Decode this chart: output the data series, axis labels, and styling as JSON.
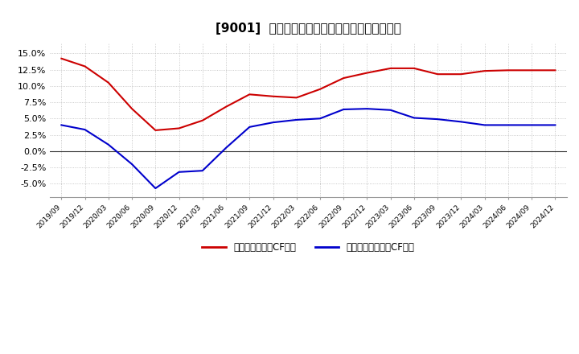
{
  "title": "[9001]  有利子負債キャッシュフロー比率の推移",
  "x_labels": [
    "2019/09",
    "2019/12",
    "2020/03",
    "2020/06",
    "2020/09",
    "2020/12",
    "2021/03",
    "2021/06",
    "2021/09",
    "2021/12",
    "2022/03",
    "2022/06",
    "2022/09",
    "2022/12",
    "2023/03",
    "2023/06",
    "2023/09",
    "2023/12",
    "2024/03",
    "2024/06",
    "2024/09",
    "2024/12"
  ],
  "red_values": [
    14.2,
    13.0,
    10.5,
    6.5,
    3.2,
    3.5,
    4.7,
    6.8,
    8.7,
    8.4,
    8.2,
    9.5,
    11.2,
    12.0,
    12.7,
    12.7,
    11.8,
    11.8,
    12.3,
    12.4,
    12.4,
    12.4
  ],
  "blue_values": [
    4.0,
    3.3,
    1.0,
    -2.0,
    -5.7,
    -3.2,
    -3.0,
    0.5,
    3.7,
    4.4,
    4.8,
    5.0,
    6.4,
    6.5,
    6.3,
    5.1,
    4.9,
    4.5,
    4.0,
    4.0,
    4.0,
    4.0
  ],
  "red_color": "#cc0000",
  "blue_color": "#0000cc",
  "background_color": "#ffffff",
  "grid_color": "#aaaaaa",
  "ylim": [
    -7.0,
    16.5
  ],
  "yticks": [
    -5.0,
    -2.5,
    0.0,
    2.5,
    5.0,
    7.5,
    10.0,
    12.5,
    15.0
  ],
  "legend_red": "有利子負債営業CF比率",
  "legend_blue": "有利子負債フリーCF比率",
  "title_prefix": "[9001]  ",
  "title_jp": "有利子負債キャッシュフロー比率の推移"
}
